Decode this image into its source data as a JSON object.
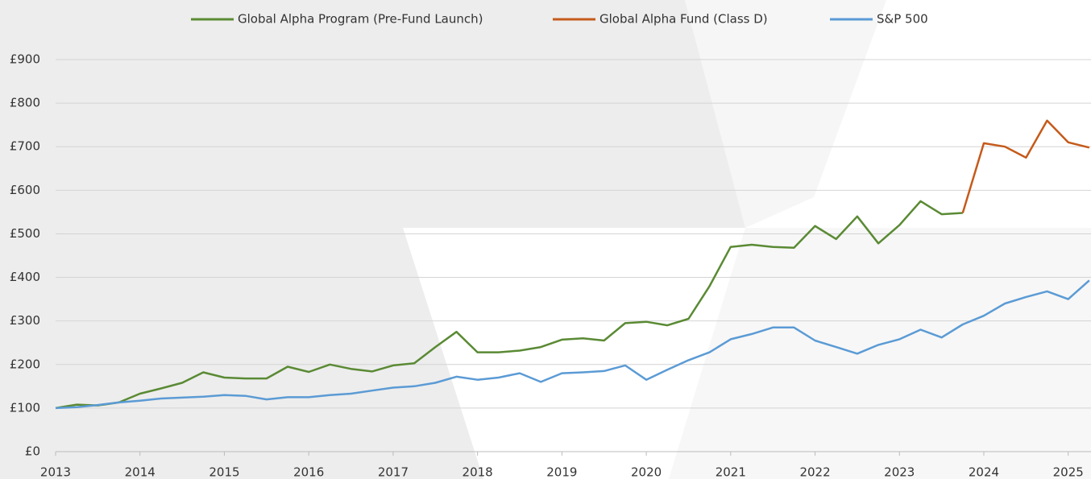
{
  "chart_data": {
    "type": "line",
    "x": [
      2013,
      2013.25,
      2013.5,
      2013.75,
      2014,
      2014.25,
      2014.5,
      2014.75,
      2015,
      2015.25,
      2015.5,
      2015.75,
      2016,
      2016.25,
      2016.5,
      2016.75,
      2017,
      2017.25,
      2017.5,
      2017.75,
      2018,
      2018.25,
      2018.5,
      2018.75,
      2019,
      2019.25,
      2019.5,
      2019.75,
      2020,
      2020.25,
      2020.5,
      2020.75,
      2021,
      2021.25,
      2021.5,
      2021.75,
      2022,
      2022.25,
      2022.5,
      2022.75,
      2023,
      2023.25,
      2023.5,
      2023.75,
      2024,
      2024.25,
      2024.5,
      2024.75,
      2025,
      2025.25
    ],
    "series": [
      {
        "name": "Global Alpha Program (Pre-Fund Launch)",
        "color": "#5a8a34",
        "values": [
          100,
          108,
          106,
          113,
          133,
          145,
          158,
          182,
          170,
          168,
          168,
          195,
          183,
          200,
          190,
          184,
          198,
          203,
          240,
          275,
          228,
          228,
          232,
          240,
          257,
          260,
          255,
          295,
          298,
          290,
          305,
          380,
          470,
          475,
          470,
          468,
          518,
          488,
          540,
          478,
          520,
          575,
          545,
          548,
          null,
          null,
          null,
          null,
          null,
          null
        ]
      },
      {
        "name": "Global Alpha Fund (Class D)",
        "color": "#c55a1a",
        "values": [
          null,
          null,
          null,
          null,
          null,
          null,
          null,
          null,
          null,
          null,
          null,
          null,
          null,
          null,
          null,
          null,
          null,
          null,
          null,
          null,
          null,
          null,
          null,
          null,
          null,
          null,
          null,
          null,
          null,
          null,
          null,
          null,
          null,
          null,
          null,
          null,
          null,
          null,
          null,
          null,
          null,
          null,
          null,
          548,
          708,
          700,
          675,
          760,
          710,
          698
        ]
      },
      {
        "name": "S&P 500",
        "color": "#5b9bd5",
        "values": [
          100,
          102,
          107,
          113,
          117,
          122,
          124,
          126,
          130,
          128,
          120,
          125,
          125,
          130,
          133,
          140,
          147,
          150,
          158,
          172,
          165,
          170,
          180,
          160,
          180,
          182,
          185,
          198,
          165,
          188,
          210,
          228,
          258,
          270,
          285,
          285,
          255,
          240,
          225,
          245,
          258,
          280,
          262,
          292,
          312,
          340,
          355,
          368,
          350,
          393
        ]
      }
    ],
    "xlim": [
      2013,
      2025.27
    ],
    "xticks": [
      2013,
      2014,
      2015,
      2016,
      2017,
      2018,
      2019,
      2020,
      2021,
      2022,
      2023,
      2024,
      2025
    ],
    "ylim": [
      0,
      900
    ],
    "yticks": [
      {
        "value": 0,
        "label": "£0"
      },
      {
        "value": 100,
        "label": "£100"
      },
      {
        "value": 200,
        "label": "£200"
      },
      {
        "value": 300,
        "label": "£300"
      },
      {
        "value": 400,
        "label": "£400"
      },
      {
        "value": 500,
        "label": "£500"
      },
      {
        "value": 600,
        "label": "£600"
      },
      {
        "value": 700,
        "label": "£700"
      },
      {
        "value": 800,
        "label": "£800"
      },
      {
        "value": 900,
        "label": "£900"
      }
    ],
    "grid": true,
    "legend": "top"
  }
}
